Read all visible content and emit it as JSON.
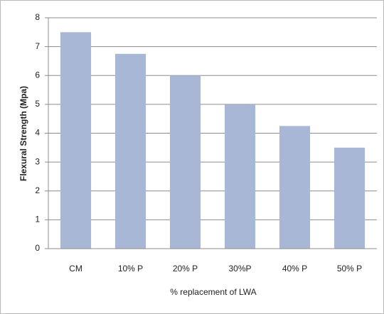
{
  "chart_data": {
    "type": "bar",
    "xlabel": "% replacement of LWA",
    "ylabel": "Flexural Strength (Mpa)",
    "categories": [
      "CM",
      "10% P",
      "20% P",
      "30%P",
      "40% P",
      "50% P"
    ],
    "values": [
      7.5,
      6.75,
      6.0,
      5.0,
      4.25,
      3.5
    ],
    "color": "#a9b7d6",
    "ylim": [
      0,
      8
    ],
    "yticks": [
      0,
      1,
      2,
      3,
      4,
      5,
      6,
      7,
      8
    ],
    "grid": true
  }
}
